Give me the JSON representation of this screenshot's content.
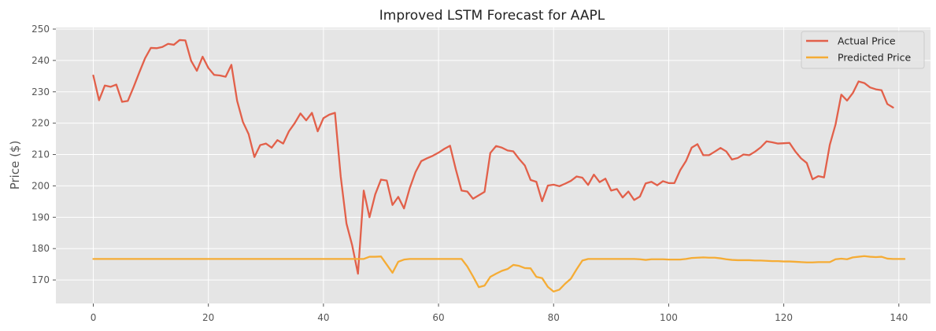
{
  "chart_data": {
    "type": "line",
    "title": "Improved LSTM Forecast for AAPL",
    "xlabel": "",
    "ylabel": "Price ($)",
    "xlim": [
      -6.5,
      145.5
    ],
    "ylim": [
      162.5,
      250.5
    ],
    "xticks": [
      0,
      20,
      40,
      60,
      80,
      100,
      120,
      140
    ],
    "yticks": [
      170,
      180,
      190,
      200,
      210,
      220,
      230,
      240,
      250
    ],
    "grid": true,
    "legend_position": "top-right",
    "series": [
      {
        "name": "Actual Price",
        "color": "#e2604a",
        "values": [
          235.2,
          227.3,
          232.0,
          231.6,
          232.3,
          226.8,
          227.1,
          231.5,
          236.2,
          240.7,
          244.0,
          243.9,
          244.3,
          245.3,
          245.0,
          246.5,
          246.4,
          239.9,
          236.7,
          241.2,
          237.6,
          235.4,
          235.2,
          234.8,
          238.6,
          227.1,
          220.4,
          216.5,
          209.2,
          213.0,
          213.5,
          212.2,
          214.6,
          213.5,
          217.4,
          220.0,
          223.1,
          220.9,
          223.3,
          217.4,
          221.6,
          222.7,
          223.3,
          203.0,
          188.0,
          181.0,
          172.0,
          198.5,
          190.0,
          197.3,
          202.0,
          201.7,
          193.9,
          196.5,
          192.8,
          199.3,
          204.4,
          207.9,
          208.8,
          209.6,
          210.6,
          211.8,
          212.8,
          205.3,
          198.5,
          198.2,
          195.9,
          197.0,
          198.1,
          210.5,
          212.7,
          212.2,
          211.3,
          211.0,
          208.6,
          206.5,
          201.9,
          201.3,
          195.1,
          200.1,
          200.4,
          199.9,
          200.7,
          201.6,
          203.0,
          202.6,
          200.3,
          203.6,
          201.2,
          202.3,
          198.5,
          199.0,
          196.3,
          198.2,
          195.5,
          196.6,
          200.8,
          201.3,
          200.2,
          201.5,
          200.9,
          200.9,
          205.0,
          207.9,
          212.2,
          213.3,
          209.8,
          209.8,
          210.9,
          212.1,
          211.0,
          208.4,
          208.9,
          210.0,
          209.8,
          210.9,
          212.3,
          214.2,
          213.9,
          213.5,
          213.6,
          213.7,
          211.0,
          208.8,
          207.3,
          202.1,
          203.1,
          202.7,
          213.1,
          219.6,
          229.1,
          227.2,
          229.6,
          233.3,
          232.8,
          231.4,
          230.8,
          230.5,
          226.1,
          225.0
        ]
      },
      {
        "name": "Predicted Price",
        "color": "#f5ac35",
        "values": [
          176.7,
          176.7,
          176.7,
          176.7,
          176.7,
          176.7,
          176.7,
          176.7,
          176.7,
          176.7,
          176.7,
          176.7,
          176.7,
          176.7,
          176.7,
          176.7,
          176.7,
          176.7,
          176.7,
          176.7,
          176.7,
          176.7,
          176.7,
          176.7,
          176.7,
          176.7,
          176.7,
          176.7,
          176.7,
          176.7,
          176.7,
          176.7,
          176.7,
          176.7,
          176.7,
          176.7,
          176.7,
          176.7,
          176.7,
          176.7,
          176.7,
          176.7,
          176.7,
          176.7,
          176.7,
          176.7,
          176.7,
          176.7,
          177.4,
          177.4,
          177.5,
          174.9,
          172.3,
          175.8,
          176.5,
          176.7,
          176.7,
          176.7,
          176.7,
          176.7,
          176.7,
          176.7,
          176.7,
          176.7,
          176.7,
          174.3,
          171.1,
          167.7,
          168.2,
          171.0,
          172.0,
          172.9,
          173.5,
          174.8,
          174.5,
          173.8,
          173.7,
          171.0,
          170.6,
          167.8,
          166.3,
          166.9,
          168.8,
          170.4,
          173.4,
          176.2,
          176.7,
          176.7,
          176.7,
          176.7,
          176.7,
          176.7,
          176.7,
          176.7,
          176.7,
          176.6,
          176.4,
          176.6,
          176.6,
          176.6,
          176.5,
          176.5,
          176.5,
          176.7,
          177.0,
          177.1,
          177.2,
          177.1,
          177.1,
          176.9,
          176.6,
          176.4,
          176.3,
          176.3,
          176.3,
          176.2,
          176.2,
          176.1,
          176.0,
          176.0,
          175.9,
          175.9,
          175.8,
          175.7,
          175.6,
          175.6,
          175.7,
          175.7,
          175.7,
          176.6,
          176.8,
          176.6,
          177.2,
          177.4,
          177.6,
          177.4,
          177.3,
          177.4,
          176.8,
          176.7,
          176.7,
          176.7
        ]
      }
    ]
  }
}
